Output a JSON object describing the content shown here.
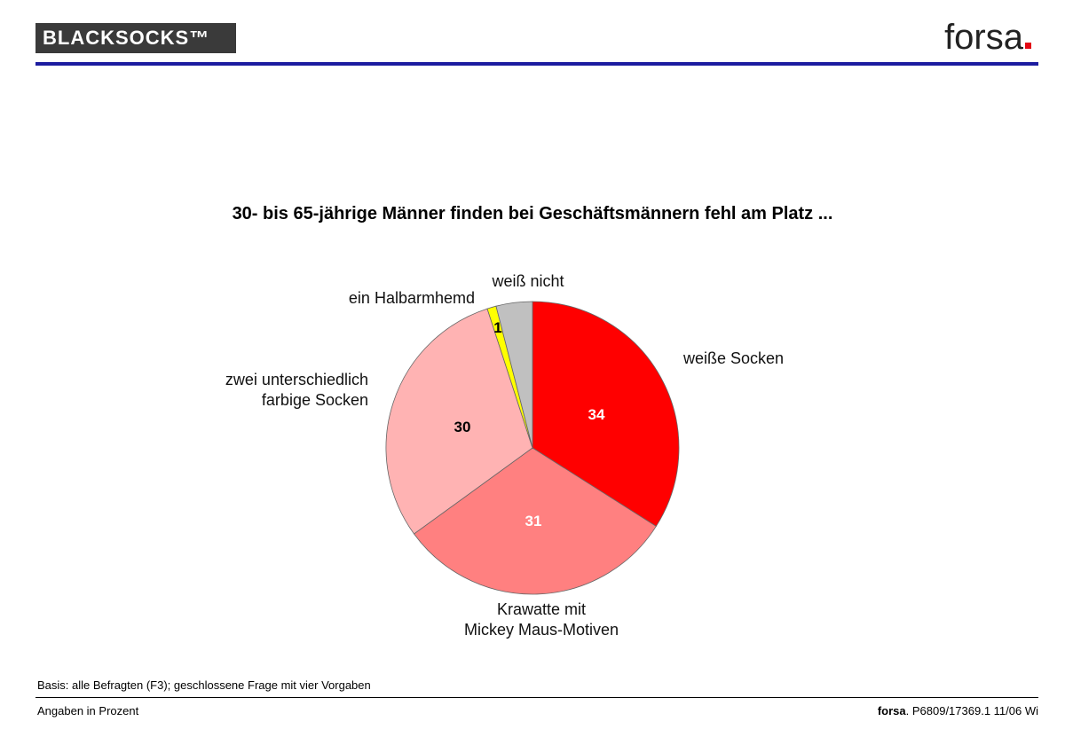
{
  "header": {
    "logo": "BLACKSOCKS™",
    "brand": "forsa"
  },
  "chart_data": {
    "type": "pie",
    "title": "30- bis 65-jährige Männer finden bei Geschäftsmännern fehl am Platz ...",
    "categories": [
      "weiße Socken",
      "Krawatte mit\nMickey Maus-Motiven",
      "zwei unterschiedlich\nfarbige Socken",
      "ein Halbarmhemd",
      "weiß nicht"
    ],
    "values": [
      34,
      31,
      30,
      1,
      4
    ],
    "value_labels": [
      "34",
      "31",
      "30",
      "1",
      null
    ],
    "colors": [
      "#ff0000",
      "#ff8080",
      "#ffb3b3",
      "#ffff00",
      "#c0c0c0"
    ]
  },
  "footer": {
    "note": "Basis: alle Befragten (F3); geschlossene Frage mit vier Vorgaben",
    "units": "Angaben in Prozent",
    "brand": "forsa",
    "reference": ". P6809/17369.1 11/06 Wi"
  }
}
